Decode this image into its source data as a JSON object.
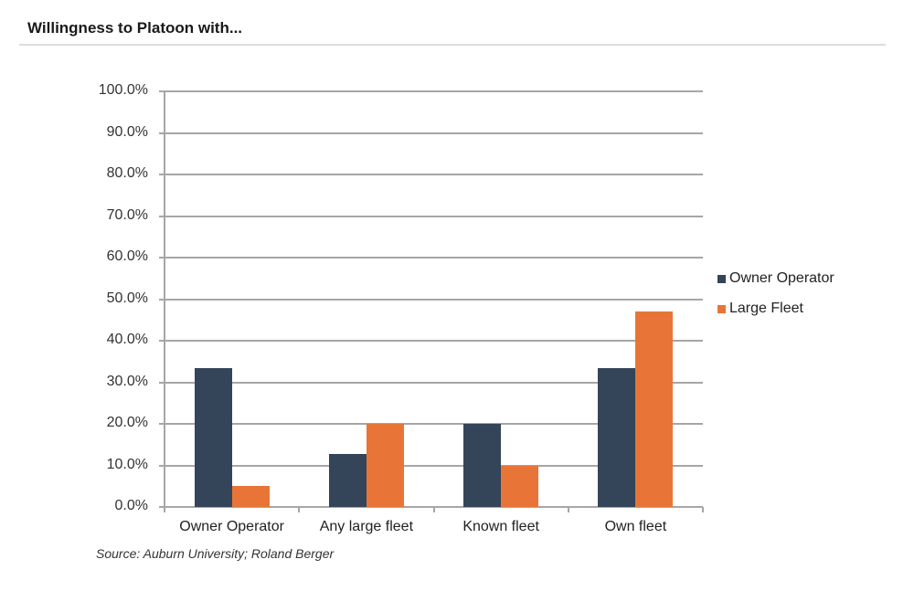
{
  "header": {
    "title": "Willingness to Platoon with..."
  },
  "colors": {
    "owner_operator": "#344459",
    "large_fleet": "#e87537",
    "grid": "#a6a6a6"
  },
  "chart_data": {
    "type": "bar",
    "title": "Willingness to Platoon with...",
    "xlabel": "",
    "ylabel": "",
    "categories": [
      "Owner Operator",
      "Any large fleet",
      "Known fleet",
      "Own fleet"
    ],
    "series": [
      {
        "name": "Owner Operator",
        "color": "#344459",
        "values": [
          33.3,
          12.7,
          20.0,
          33.3
        ]
      },
      {
        "name": "Large Fleet",
        "color": "#e87537",
        "values": [
          5.1,
          20.0,
          10.0,
          47.1
        ]
      }
    ],
    "ylim": [
      0,
      100
    ],
    "yticks": [
      "0.0%",
      "10.0%",
      "20.0%",
      "30.0%",
      "40.0%",
      "50.0%",
      "60.0%",
      "70.0%",
      "80.0%",
      "90.0%",
      "100.0%"
    ],
    "grid": true,
    "legend_position": "right"
  },
  "legend": [
    {
      "label": "Owner Operator",
      "color": "#344459"
    },
    {
      "label": "Large Fleet",
      "color": "#e87537"
    }
  ],
  "source": "Source: Auburn University; Roland Berger"
}
